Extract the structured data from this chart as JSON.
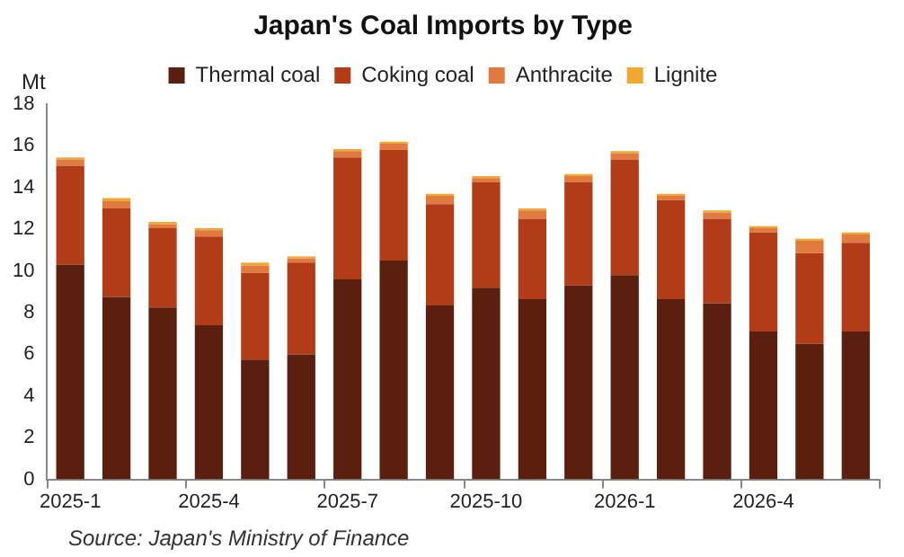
{
  "chart_data": {
    "type": "bar",
    "title": "Japan's Coal Imports by Type",
    "ylabel": "Mt",
    "stacked": true,
    "legend": "top",
    "categories": [
      "2025-1",
      null,
      null,
      "2025-4",
      null,
      null,
      "2025-7",
      null,
      null,
      "2025-10",
      null,
      null,
      "2026-1",
      null,
      null,
      "2026-4",
      null,
      null
    ],
    "series": [
      {
        "name": "Thermal coal",
        "color": "#5a1f0e",
        "values": [
          10.3,
          8.75,
          8.25,
          7.4,
          5.75,
          6.0,
          9.6,
          10.5,
          8.35,
          9.2,
          8.65,
          9.3,
          9.8,
          8.65,
          8.45,
          7.1,
          6.5,
          7.1
        ]
      },
      {
        "name": "Coking coal",
        "color": "#b23c18",
        "values": [
          4.75,
          4.25,
          3.8,
          4.25,
          4.15,
          4.4,
          5.85,
          5.3,
          4.85,
          5.05,
          3.85,
          4.95,
          5.55,
          4.75,
          4.05,
          4.75,
          4.35,
          4.25
        ]
      },
      {
        "name": "Anthracite",
        "color": "#e07a3f",
        "values": [
          0.3,
          0.35,
          0.2,
          0.3,
          0.35,
          0.2,
          0.3,
          0.3,
          0.4,
          0.2,
          0.4,
          0.3,
          0.3,
          0.2,
          0.3,
          0.2,
          0.6,
          0.4
        ]
      },
      {
        "name": "Lignite",
        "color": "#f0a830",
        "values": [
          0.1,
          0.15,
          0.1,
          0.1,
          0.15,
          0.1,
          0.1,
          0.1,
          0.1,
          0.1,
          0.1,
          0.1,
          0.1,
          0.1,
          0.1,
          0.1,
          0.1,
          0.1
        ]
      }
    ],
    "ylim": [
      0,
      18
    ],
    "yticks": [
      0,
      2,
      4,
      6,
      8,
      10,
      12,
      14,
      16,
      18
    ],
    "grid": false,
    "annotations": [
      "Source: Japan's Ministry of Finance"
    ]
  }
}
